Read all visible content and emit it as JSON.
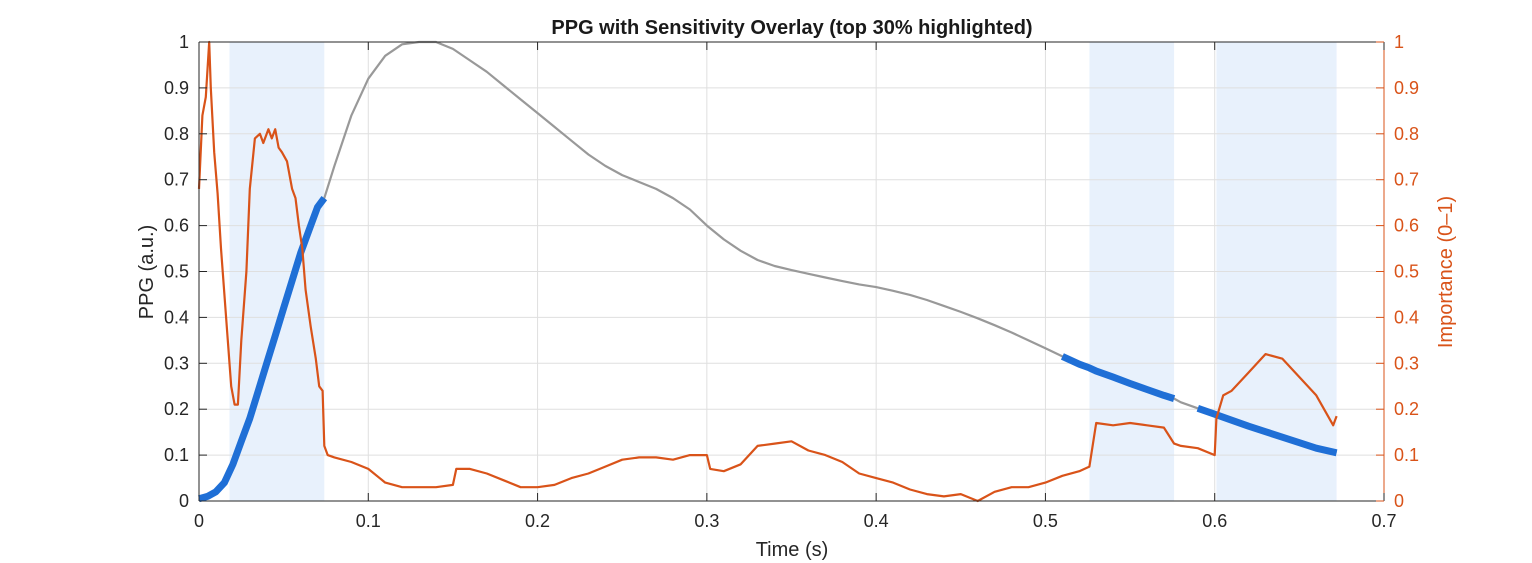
{
  "chart_data": {
    "type": "line",
    "title": "PPG with Sensitivity Overlay (top 30% highlighted)",
    "xlabel": "Time (s)",
    "ylabel": "PPG (a.u.)",
    "y2label": "Importance (0–1)",
    "xlim": [
      0,
      0.7
    ],
    "ylim": [
      0,
      1
    ],
    "y2lim": [
      0,
      1
    ],
    "xticks": [
      "0",
      "0.1",
      "0.2",
      "0.3",
      "0.4",
      "0.5",
      "0.6",
      "0.7"
    ],
    "yticks": [
      "0",
      "0.1",
      "0.2",
      "0.3",
      "0.4",
      "0.5",
      "0.6",
      "0.7",
      "0.8",
      "0.9",
      "1"
    ],
    "y2ticks": [
      "0",
      "0.1",
      "0.2",
      "0.3",
      "0.4",
      "0.5",
      "0.6",
      "0.7",
      "0.8",
      "0.9",
      "1"
    ],
    "grid": true,
    "highlight_regions": [
      [
        0.018,
        0.074
      ],
      [
        0.526,
        0.576
      ],
      [
        0.601,
        0.672
      ]
    ],
    "colors": {
      "ppg": "#999999",
      "ppg_highlight": "#1f6fd6",
      "importance": "#D95319",
      "region_fill": "#e8f1fc",
      "grid": "#dfdfdf",
      "axis": "#262626"
    },
    "series": [
      {
        "axis": "left",
        "x": [
          0,
          0.005,
          0.01,
          0.015,
          0.02,
          0.025,
          0.03,
          0.035,
          0.04,
          0.045,
          0.05,
          0.055,
          0.06,
          0.065,
          0.07,
          0.074,
          0.08,
          0.09,
          0.1,
          0.11,
          0.12,
          0.13,
          0.14,
          0.15,
          0.16,
          0.17,
          0.18,
          0.19,
          0.2,
          0.21,
          0.22,
          0.23,
          0.24,
          0.25,
          0.26,
          0.27,
          0.28,
          0.29,
          0.3,
          0.31,
          0.32,
          0.33,
          0.34,
          0.35,
          0.36,
          0.37,
          0.38,
          0.39,
          0.4,
          0.41,
          0.42,
          0.43,
          0.44,
          0.45,
          0.46,
          0.47,
          0.48,
          0.49,
          0.5,
          0.51,
          0.52,
          0.526,
          0.53,
          0.54,
          0.55,
          0.56,
          0.57,
          0.576,
          0.58,
          0.59,
          0.6,
          0.61,
          0.62,
          0.63,
          0.64,
          0.65,
          0.66,
          0.672
        ],
        "y": [
          0.005,
          0.01,
          0.02,
          0.04,
          0.08,
          0.13,
          0.18,
          0.24,
          0.3,
          0.36,
          0.42,
          0.48,
          0.54,
          0.59,
          0.64,
          0.66,
          0.73,
          0.84,
          0.92,
          0.97,
          0.995,
          1.0,
          1.0,
          0.985,
          0.96,
          0.935,
          0.905,
          0.875,
          0.845,
          0.815,
          0.785,
          0.755,
          0.73,
          0.71,
          0.695,
          0.68,
          0.66,
          0.635,
          0.6,
          0.57,
          0.545,
          0.525,
          0.512,
          0.503,
          0.495,
          0.487,
          0.479,
          0.472,
          0.466,
          0.458,
          0.449,
          0.438,
          0.425,
          0.412,
          0.398,
          0.383,
          0.367,
          0.35,
          0.333,
          0.315,
          0.298,
          0.29,
          0.283,
          0.27,
          0.256,
          0.243,
          0.23,
          0.223,
          0.215,
          0.202,
          0.189,
          0.176,
          0.163,
          0.151,
          0.139,
          0.127,
          0.115,
          0.105
        ]
      },
      {
        "axis": "right",
        "x": [
          0,
          0.002,
          0.004,
          0.006,
          0.007,
          0.009,
          0.011,
          0.013,
          0.015,
          0.017,
          0.019,
          0.021,
          0.023,
          0.025,
          0.028,
          0.03,
          0.033,
          0.036,
          0.038,
          0.041,
          0.043,
          0.045,
          0.047,
          0.049,
          0.052,
          0.055,
          0.057,
          0.059,
          0.061,
          0.063,
          0.066,
          0.069,
          0.071,
          0.073,
          0.074,
          0.076,
          0.08,
          0.09,
          0.1,
          0.11,
          0.12,
          0.13,
          0.14,
          0.15,
          0.152,
          0.16,
          0.17,
          0.18,
          0.19,
          0.2,
          0.21,
          0.22,
          0.23,
          0.24,
          0.25,
          0.26,
          0.27,
          0.28,
          0.29,
          0.3,
          0.302,
          0.31,
          0.32,
          0.33,
          0.34,
          0.35,
          0.36,
          0.37,
          0.38,
          0.39,
          0.4,
          0.41,
          0.42,
          0.43,
          0.44,
          0.45,
          0.46,
          0.47,
          0.48,
          0.49,
          0.5,
          0.51,
          0.52,
          0.526,
          0.53,
          0.54,
          0.55,
          0.56,
          0.57,
          0.576,
          0.58,
          0.59,
          0.6,
          0.601,
          0.605,
          0.61,
          0.62,
          0.63,
          0.64,
          0.65,
          0.66,
          0.67,
          0.672
        ],
        "y": [
          0.68,
          0.84,
          0.88,
          1.0,
          0.9,
          0.76,
          0.67,
          0.55,
          0.45,
          0.35,
          0.25,
          0.21,
          0.21,
          0.35,
          0.5,
          0.68,
          0.79,
          0.8,
          0.78,
          0.81,
          0.79,
          0.81,
          0.77,
          0.76,
          0.74,
          0.68,
          0.66,
          0.6,
          0.55,
          0.46,
          0.38,
          0.31,
          0.25,
          0.24,
          0.12,
          0.1,
          0.095,
          0.085,
          0.07,
          0.04,
          0.03,
          0.03,
          0.03,
          0.035,
          0.07,
          0.07,
          0.06,
          0.045,
          0.03,
          0.03,
          0.035,
          0.05,
          0.06,
          0.075,
          0.09,
          0.095,
          0.095,
          0.09,
          0.1,
          0.1,
          0.07,
          0.065,
          0.08,
          0.12,
          0.125,
          0.13,
          0.11,
          0.1,
          0.085,
          0.06,
          0.05,
          0.04,
          0.025,
          0.015,
          0.01,
          0.015,
          0.0,
          0.02,
          0.03,
          0.03,
          0.04,
          0.055,
          0.065,
          0.075,
          0.17,
          0.165,
          0.17,
          0.165,
          0.16,
          0.125,
          0.12,
          0.115,
          0.1,
          0.18,
          0.23,
          0.24,
          0.28,
          0.32,
          0.31,
          0.27,
          0.23,
          0.165,
          0.185
        ]
      }
    ]
  }
}
